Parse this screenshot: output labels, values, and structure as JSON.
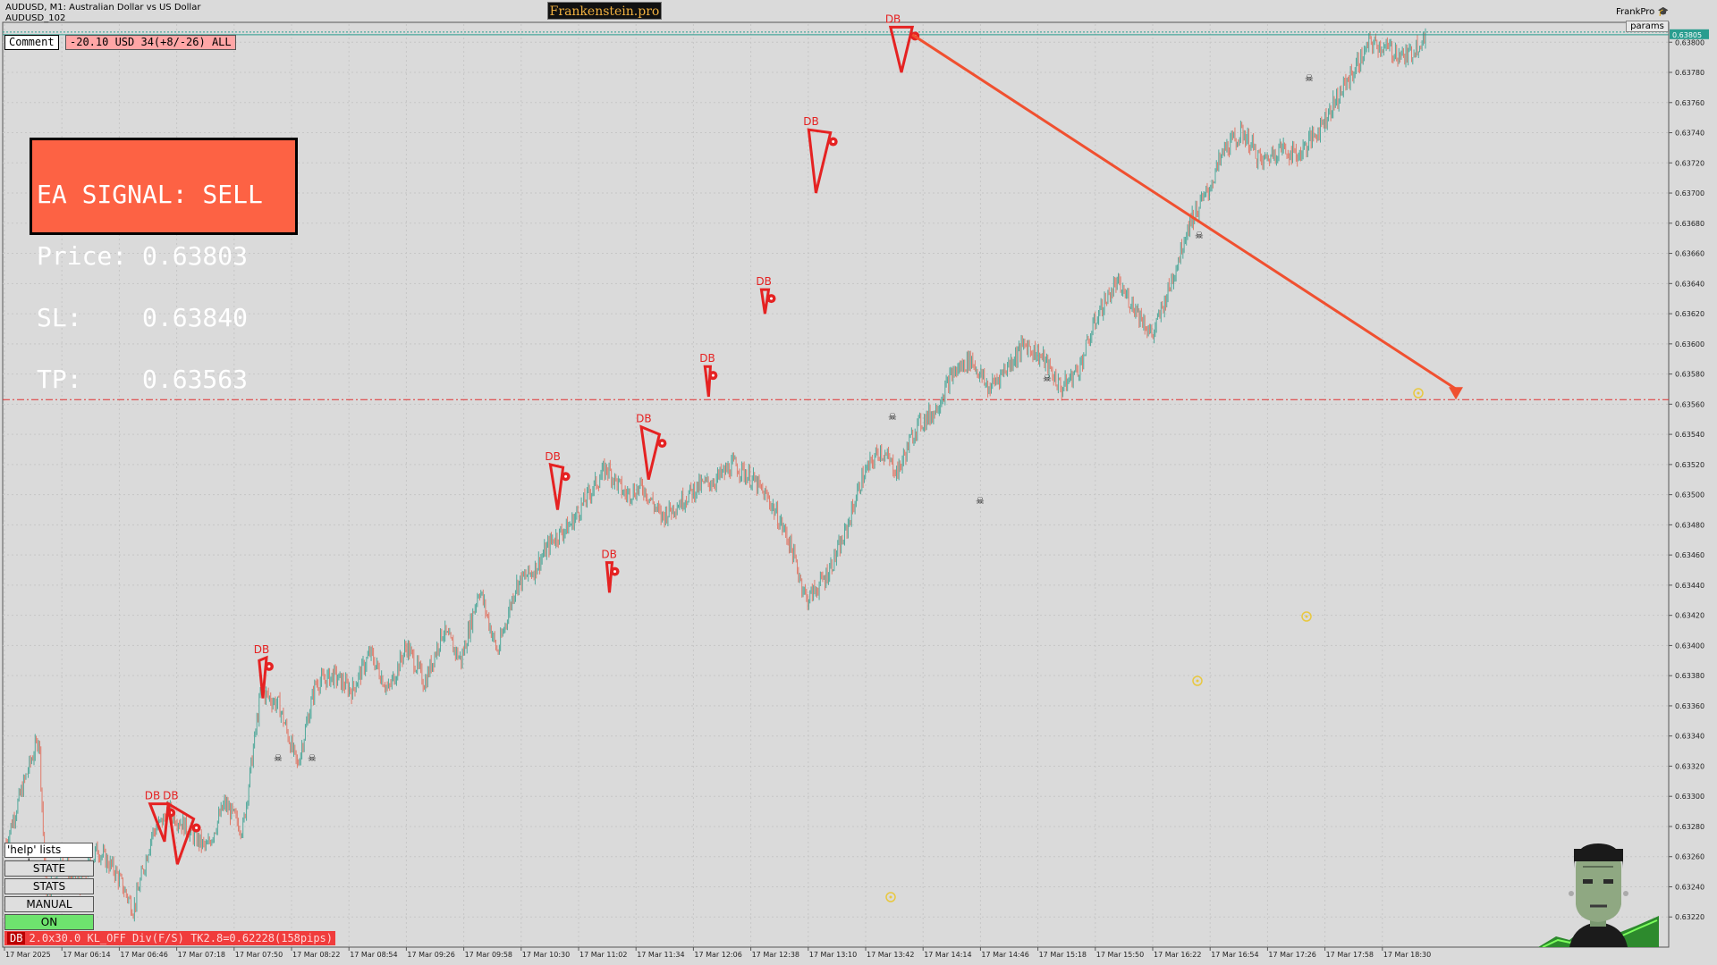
{
  "header": {
    "symbol_line": "AUDUSD, M1:  Australian Dollar vs US Dollar",
    "sub_line": "AUDUSD_102"
  },
  "brand": "Frankenstein.pro",
  "comment": {
    "label": "Comment",
    "value": "-20.10 USD 34(+8/-26) ALL"
  },
  "signal": {
    "line1": "EA SIGNAL: SELL",
    "line2": "Price: 0.63803",
    "line3": "SL:    0.63840",
    "line4": "TP:    0.63563"
  },
  "top_right": {
    "profile": "FrankPro",
    "params_button": "params",
    "current_price_label": "0.63805"
  },
  "side_panel": {
    "help_text": "'help' lists cmds",
    "buttons": [
      "STATE",
      "STATS",
      "MANUAL",
      "ON"
    ]
  },
  "status_bar": {
    "tag": "DB",
    "text": "2.0x30.0 KL_OFF Div(F/S) TK2.8=0.62228(158pips)"
  },
  "colors": {
    "background": "#dadada",
    "bull_candle": "#4fa89a",
    "bear_candle": "#e07a6a",
    "pattern_red": "#e52222",
    "signal_bg": "#fd6244",
    "tp_line": "#e03030",
    "price_line": "#2a9d8f"
  },
  "chart_data": {
    "type": "candlestick",
    "symbol": "AUDUSD",
    "timeframe": "M1",
    "ylim": [
      0.632,
      0.63812
    ],
    "y_ticks": [
      "0.63800",
      "0.63780",
      "0.63760",
      "0.63740",
      "0.63720",
      "0.63700",
      "0.63680",
      "0.63660",
      "0.63640",
      "0.63620",
      "0.63600",
      "0.63580",
      "0.63560",
      "0.63540",
      "0.63520",
      "0.63500",
      "0.63480",
      "0.63460",
      "0.63440",
      "0.63420",
      "0.63400",
      "0.63380",
      "0.63360",
      "0.63340",
      "0.63320",
      "0.63300",
      "0.63280",
      "0.63260",
      "0.63240",
      "0.63220"
    ],
    "x_ticks": [
      "17 Mar 2025",
      "17 Mar 06:14",
      "17 Mar 06:46",
      "17 Mar 07:18",
      "17 Mar 07:50",
      "17 Mar 08:22",
      "17 Mar 08:54",
      "17 Mar 09:26",
      "17 Mar 09:58",
      "17 Mar 10:30",
      "17 Mar 11:02",
      "17 Mar 11:34",
      "17 Mar 12:06",
      "17 Mar 12:38",
      "17 Mar 13:10",
      "17 Mar 13:42",
      "17 Mar 14:14",
      "17 Mar 14:46",
      "17 Mar 15:18",
      "17 Mar 15:50",
      "17 Mar 16:22",
      "17 Mar 16:54",
      "17 Mar 17:26",
      "17 Mar 17:58",
      "17 Mar 18:30"
    ],
    "price_path": [
      [
        0,
        0.6327
      ],
      [
        1,
        0.6331
      ],
      [
        1.8,
        0.6334
      ],
      [
        2.2,
        0.6323
      ],
      [
        3,
        0.6326
      ],
      [
        4,
        0.6324
      ],
      [
        5,
        0.63265
      ],
      [
        6,
        0.6325
      ],
      [
        7,
        0.63225
      ],
      [
        8,
        0.63275
      ],
      [
        9,
        0.6329
      ],
      [
        10,
        0.63278
      ],
      [
        11,
        0.63265
      ],
      [
        12,
        0.63295
      ],
      [
        13,
        0.63278
      ],
      [
        14,
        0.6337
      ],
      [
        15,
        0.6336
      ],
      [
        16,
        0.6332
      ],
      [
        17,
        0.63375
      ],
      [
        18,
        0.6338
      ],
      [
        19,
        0.6337
      ],
      [
        20,
        0.63395
      ],
      [
        21,
        0.6337
      ],
      [
        22,
        0.634
      ],
      [
        23,
        0.63375
      ],
      [
        24,
        0.6341
      ],
      [
        25,
        0.6339
      ],
      [
        26,
        0.63438
      ],
      [
        27,
        0.63395
      ],
      [
        28,
        0.6344
      ],
      [
        29,
        0.6345
      ],
      [
        30,
        0.6347
      ],
      [
        31,
        0.6348
      ],
      [
        32,
        0.635
      ],
      [
        33,
        0.63518
      ],
      [
        34,
        0.635
      ],
      [
        35,
        0.63505
      ],
      [
        36,
        0.63485
      ],
      [
        37,
        0.63495
      ],
      [
        38,
        0.63505
      ],
      [
        39,
        0.6351
      ],
      [
        40,
        0.6352
      ],
      [
        41,
        0.6351
      ],
      [
        42,
        0.63495
      ],
      [
        43,
        0.6347
      ],
      [
        44,
        0.6343
      ],
      [
        45,
        0.63445
      ],
      [
        46,
        0.6347
      ],
      [
        47,
        0.6351
      ],
      [
        48,
        0.6353
      ],
      [
        49,
        0.63515
      ],
      [
        50,
        0.63545
      ],
      [
        51,
        0.63555
      ],
      [
        52,
        0.6358
      ],
      [
        53,
        0.6359
      ],
      [
        54,
        0.6357
      ],
      [
        55,
        0.63585
      ],
      [
        56,
        0.636
      ],
      [
        57,
        0.6359
      ],
      [
        58,
        0.6357
      ],
      [
        59,
        0.63585
      ],
      [
        60,
        0.6362
      ],
      [
        61,
        0.6364
      ],
      [
        62,
        0.63625
      ],
      [
        63,
        0.63605
      ],
      [
        64,
        0.6364
      ],
      [
        65,
        0.6368
      ],
      [
        66,
        0.637
      ],
      [
        67,
        0.6373
      ],
      [
        68,
        0.6374
      ],
      [
        69,
        0.6372
      ],
      [
        70,
        0.6373
      ],
      [
        71,
        0.63725
      ],
      [
        72,
        0.6374
      ],
      [
        73,
        0.6376
      ],
      [
        74,
        0.6378
      ],
      [
        75,
        0.638
      ],
      [
        76,
        0.63795
      ],
      [
        77,
        0.6379
      ],
      [
        78,
        0.63805
      ]
    ],
    "db_patterns": [
      {
        "label": "DB",
        "tri": [
          [
            7.9,
            0.63295
          ],
          [
            8.9,
            0.63295
          ],
          [
            8.7,
            0.6327
          ]
        ]
      },
      {
        "label": "DB",
        "tri": [
          [
            8.9,
            0.63295
          ],
          [
            10.3,
            0.63285
          ],
          [
            9.4,
            0.63255
          ]
        ]
      },
      {
        "label": "DB",
        "tri": [
          [
            13.9,
            0.6339
          ],
          [
            14.3,
            0.63392
          ],
          [
            14.1,
            0.63365
          ]
        ]
      },
      {
        "label": "DB",
        "tri": [
          [
            29.9,
            0.6352
          ],
          [
            30.6,
            0.63518
          ],
          [
            30.3,
            0.6349
          ]
        ]
      },
      {
        "label": "DB",
        "tri": [
          [
            33.0,
            0.63455
          ],
          [
            33.3,
            0.63455
          ],
          [
            33.15,
            0.63435
          ]
        ]
      },
      {
        "label": "DB",
        "tri": [
          [
            34.9,
            0.63545
          ],
          [
            35.9,
            0.6354
          ],
          [
            35.3,
            0.6351
          ]
        ]
      },
      {
        "label": "DB",
        "tri": [
          [
            38.4,
            0.63585
          ],
          [
            38.7,
            0.63585
          ],
          [
            38.6,
            0.63565
          ]
        ]
      },
      {
        "label": "DB",
        "tri": [
          [
            41.5,
            0.63636
          ],
          [
            41.9,
            0.63636
          ],
          [
            41.7,
            0.6362
          ]
        ]
      },
      {
        "label": "DB",
        "tri": [
          [
            44.1,
            0.63742
          ],
          [
            45.3,
            0.6374
          ],
          [
            44.5,
            0.637
          ]
        ]
      },
      {
        "label": "DB",
        "tri": [
          [
            48.6,
            0.6381
          ],
          [
            49.8,
            0.6381
          ],
          [
            49.2,
            0.6378
          ]
        ]
      }
    ],
    "signal_arrow": {
      "from": [
        49.8,
        0.63805
      ],
      "to": [
        51.0,
        0.63563
      ]
    },
    "tp_level": 0.63563,
    "current_price": 0.63805
  }
}
